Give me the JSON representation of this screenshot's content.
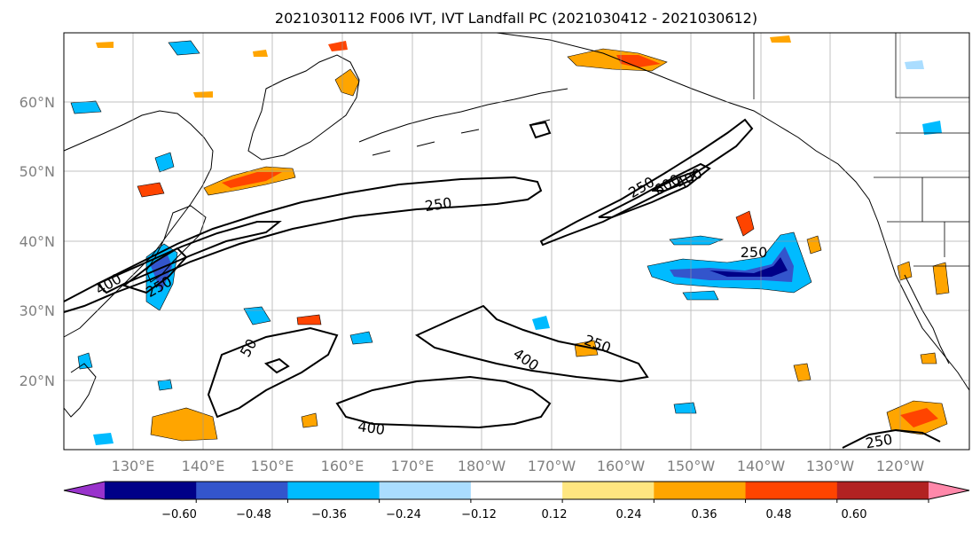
{
  "title": "2021030112 F006 IVT, IVT Landfall PC (2021030412 - 2021030612)",
  "map": {
    "lat_labels": [
      "60°N",
      "50°N",
      "40°N",
      "30°N",
      "20°N"
    ],
    "lon_labels": [
      "130°E",
      "140°E",
      "150°E",
      "160°E",
      "170°E",
      "180°W",
      "170°W",
      "160°W",
      "150°W",
      "140°W",
      "130°W",
      "120°W"
    ],
    "grid": true,
    "contour_labels": [
      "250",
      "250",
      "400",
      "600",
      "250",
      "400",
      "250",
      "400",
      "250",
      "400",
      "250",
      "450",
      "50"
    ]
  },
  "colorbar": {
    "tick_labels": [
      "−0.60",
      "−0.48",
      "−0.36",
      "−0.24",
      "−0.12",
      "0.12",
      "0.24",
      "0.36",
      "0.48",
      "0.60"
    ],
    "colors": [
      "#9933cc",
      "#000088",
      "#3355cc",
      "#00bbff",
      "#aaddff",
      "#ffffff",
      "#ffe680",
      "#ffa500",
      "#ff4400",
      "#b22222",
      "#ff88aa"
    ],
    "extend": "both"
  }
}
